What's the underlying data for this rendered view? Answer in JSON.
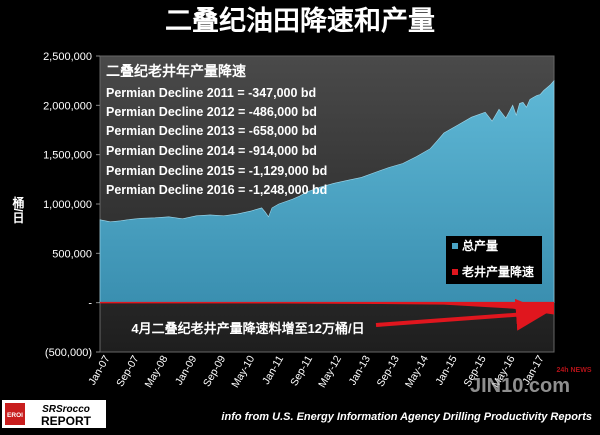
{
  "chart_data": {
    "type": "area",
    "title": "二叠纪油田降速和产量",
    "ylabel": "桶/日",
    "xlabel": "",
    "ylim": [
      -500000,
      2500000
    ],
    "yticks": [
      {
        "value": 2500000,
        "label": "2,500,000"
      },
      {
        "value": 2000000,
        "label": "2,000,000"
      },
      {
        "value": 1500000,
        "label": "1,500,000"
      },
      {
        "value": 1000000,
        "label": "1,000,000"
      },
      {
        "value": 500000,
        "label": "500,000"
      },
      {
        "value": 0,
        "label": "-"
      },
      {
        "value": -500000,
        "label": "(500,000)"
      }
    ],
    "xticks": [
      "Jan-07",
      "Sep-07",
      "May-08",
      "Jan-09",
      "Sep-09",
      "May-10",
      "Jan-11",
      "Sep-11",
      "May-12",
      "Jan-13",
      "Sep-13",
      "May-14",
      "Jan-15",
      "Sep-15",
      "May-16",
      "Jan-17"
    ],
    "grid": false,
    "legend_position": "right",
    "series": [
      {
        "name": "总产量",
        "color": "#4aa3c4",
        "months": [
          0,
          3,
          6,
          9,
          12,
          16,
          20,
          24,
          28,
          32,
          36,
          40,
          44,
          47,
          48,
          49,
          50,
          52,
          56,
          58,
          60,
          64,
          68,
          72,
          76,
          80,
          84,
          88,
          92,
          96,
          98,
          100,
          104,
          108,
          112,
          114,
          116,
          118,
          120,
          121,
          122,
          123,
          124,
          125,
          126,
          127,
          128,
          129,
          130,
          131,
          132
        ],
        "values": [
          840000,
          820000,
          830000,
          845000,
          855000,
          860000,
          870000,
          850000,
          880000,
          890000,
          880000,
          900000,
          930000,
          960000,
          920000,
          870000,
          960000,
          1000000,
          1050000,
          1080000,
          1120000,
          1170000,
          1210000,
          1240000,
          1270000,
          1320000,
          1370000,
          1410000,
          1480000,
          1560000,
          1640000,
          1720000,
          1800000,
          1880000,
          1930000,
          1840000,
          1960000,
          1870000,
          2000000,
          1900000,
          2020000,
          2030000,
          1980000,
          2060000,
          2080000,
          2100000,
          2110000,
          2150000,
          2180000,
          2210000,
          2250000
        ]
      },
      {
        "name": "老井产量降速",
        "color": "#e0161e",
        "months": [
          0,
          20,
          40,
          60,
          80,
          100,
          120,
          132
        ],
        "values": [
          -2000,
          -4000,
          -6000,
          -9000,
          -14000,
          -20000,
          -60000,
          -120000
        ]
      }
    ],
    "annotations": {
      "box_title": "二叠纪老井年产量降速",
      "lines": [
        "Permian Decline 2011 = -347,000 bd",
        "Permian Decline 2012 = -486,000 bd",
        "Permian Decline 2013 = -658,000 bd",
        "Permian Decline 2014 = -914,000 bd",
        "Permian Decline 2015 = -1,129,000 bd",
        "Permian Decline 2016 = -1,248,000 bd"
      ],
      "arrow_text": "4月二叠纪老井产量降速料增至12万桶/日"
    }
  },
  "footer": {
    "logo_top": "SRSrocco",
    "logo_bottom": "REPORT",
    "logo_badge": "EROI",
    "source": "info from U.S. Energy Information Agency Drilling Productivity Reports",
    "watermark": "JIN10.com",
    "watermark_tag": "24h NEWS"
  }
}
